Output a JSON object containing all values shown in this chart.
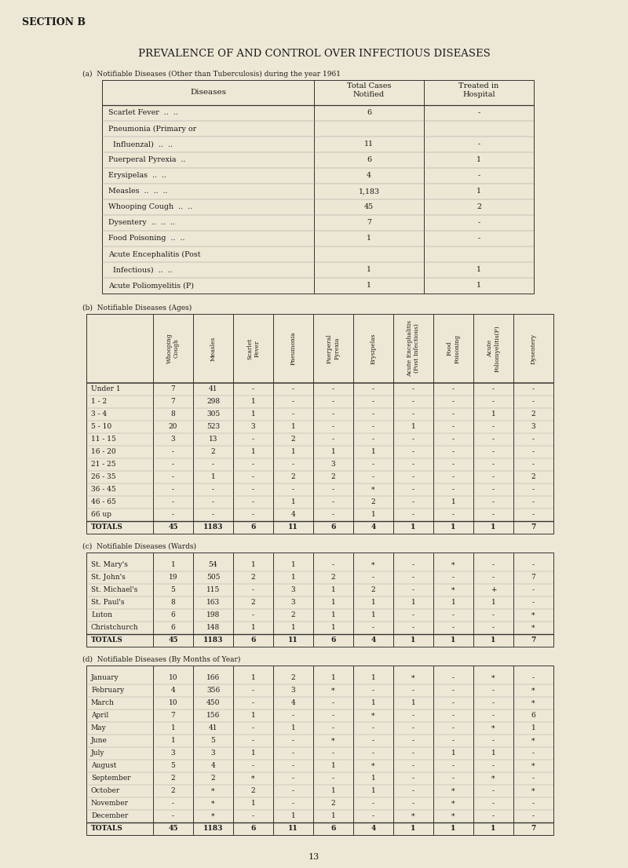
{
  "bg_color": "#ede8d5",
  "section_label": "SECTION B",
  "main_title": "PREVALENCE OF AND CONTROL OVER INFECTIOUS DISEASES",
  "table_a_title": "(a)  Notifiable Diseases (Other than Tuberculosis) during the year 1961",
  "table_b_title": "(b)  Notifiable Diseases (Ages)",
  "table_c_title": "(c)  Notifiable Diseases (Wards)",
  "table_d_title": "(d)  Notifiable Diseases (By Months of Year)",
  "table_b_col_headers": [
    "Whooping\nCough",
    "Measles",
    "Scarlet\nFever",
    "Pneumonia",
    "Puerperal\nPyrexia",
    "Erysipelas",
    "Acute Encephalitis\n(Post Infectious)",
    "Food\nPoisoning",
    "Acute\nPoliomyelitis(P)",
    "Dysentery"
  ],
  "table_a_rows": [
    [
      "Scarlet Fever  ..  ..",
      "6",
      "-"
    ],
    [
      "Pneumonia (Primary or",
      "",
      ""
    ],
    [
      "  Influenzal)  ..  ..",
      "11",
      "-"
    ],
    [
      "Puerperal Pyrexia  ..",
      "6",
      "1"
    ],
    [
      "Erysipelas  ..  ..",
      "4",
      "-"
    ],
    [
      "Measles  ..  ..  ..",
      "1,183",
      "1"
    ],
    [
      "Whooping Cough  ..  ..",
      "45",
      "2"
    ],
    [
      "Dysentery  ..  ..  ..",
      "7",
      "-"
    ],
    [
      "Food Poisoning  ..  ..",
      "1",
      "-"
    ],
    [
      "Acute Encephalitis (Post",
      "",
      ""
    ],
    [
      "  Infectious)  ..  ..",
      "1",
      "1"
    ],
    [
      "Acute Poliomyelitis (P)",
      "1",
      "1"
    ]
  ],
  "table_b_rows": [
    [
      "Under 1",
      "7",
      "41",
      "-",
      "-",
      "-",
      "-",
      "-",
      "-",
      "-",
      "-"
    ],
    [
      "1 - 2",
      "7",
      "298",
      "1",
      "-",
      "-",
      "-",
      "-",
      "-",
      "-",
      "-"
    ],
    [
      "3 - 4",
      "8",
      "305",
      "1",
      "-",
      "-",
      "-",
      "-",
      "-",
      "1",
      "2"
    ],
    [
      "5 - 10",
      "20",
      "523",
      "3",
      "1",
      "-",
      "-",
      "1",
      "-",
      "-",
      "3"
    ],
    [
      "11 - 15",
      "3",
      "13",
      "-",
      "2",
      "-",
      "-",
      "-",
      "-",
      "-",
      "-"
    ],
    [
      "16 - 20",
      "-",
      "2",
      "1",
      "1",
      "1",
      "1",
      "-",
      "-",
      "-",
      "-"
    ],
    [
      "21 - 25",
      "-",
      "-",
      "-",
      "-",
      "3",
      "-",
      "-",
      "-",
      "-",
      "-"
    ],
    [
      "26 - 35",
      "-",
      "1",
      "-",
      "2",
      "2",
      "-",
      "-",
      "-",
      "-",
      "2"
    ],
    [
      "36 - 45",
      "-",
      "-",
      "-",
      "-",
      "-",
      "*",
      "-",
      "-",
      "-",
      "-"
    ],
    [
      "46 - 65",
      "-",
      "-",
      "-",
      "1",
      "-",
      "2",
      "-",
      "1",
      "-",
      "-"
    ],
    [
      "66 up",
      "-",
      "-",
      "-",
      "4",
      "-",
      "1",
      "-",
      "-",
      "-",
      "-"
    ],
    [
      "TOTALS",
      "45",
      "1183",
      "6",
      "11",
      "6",
      "4",
      "1",
      "1",
      "1",
      "7"
    ]
  ],
  "table_c_rows": [
    [
      "St. Mary's",
      "1",
      "54",
      "1",
      "1",
      "-",
      "*",
      "-",
      "*",
      "-",
      "-"
    ],
    [
      "St. John's",
      "19",
      "505",
      "2",
      "1",
      "2",
      "-",
      "-",
      "-",
      "-",
      "7"
    ],
    [
      "St. Michael's",
      "5",
      "115",
      "-",
      "3",
      "1",
      "2",
      "-",
      "*",
      "+",
      "-"
    ],
    [
      "St. Paul's",
      "8",
      "163",
      "2",
      "3",
      "1",
      "1",
      "1",
      "1",
      "1",
      "-"
    ],
    [
      "Luton",
      "6",
      "198",
      "-",
      "2",
      "1",
      "1",
      "-",
      "-",
      "-",
      "*"
    ],
    [
      "Christchurch",
      "6",
      "148",
      "1",
      "1",
      "1",
      "-",
      "-",
      "-",
      "-",
      "*"
    ],
    [
      "TOTALS",
      "45",
      "1183",
      "6",
      "11",
      "6",
      "4",
      "1",
      "1",
      "1",
      "7"
    ]
  ],
  "table_d_rows": [
    [
      "January",
      "10",
      "166",
      "1",
      "2",
      "1",
      "1",
      "*",
      "-",
      "*",
      "-"
    ],
    [
      "February",
      "4",
      "356",
      "-",
      "3",
      "*",
      "-",
      "-",
      "-",
      "-",
      "*"
    ],
    [
      "March",
      "10",
      "450",
      "-",
      "4",
      "-",
      "1",
      "1",
      "-",
      "-",
      "*"
    ],
    [
      "April",
      "7",
      "156",
      "1",
      "-",
      "-",
      "*",
      "-",
      "-",
      "-",
      "6"
    ],
    [
      "May",
      "1",
      "41",
      "-",
      "1",
      "-",
      "-",
      "-",
      "-",
      "*",
      "1"
    ],
    [
      "June",
      "1",
      "5",
      "-",
      "-",
      "*",
      "-",
      "-",
      "-",
      "-",
      "*"
    ],
    [
      "July",
      "3",
      "3",
      "1",
      "-",
      "-",
      "-",
      "-",
      "1",
      "1",
      "-"
    ],
    [
      "August",
      "5",
      "4",
      "-",
      "-",
      "1",
      "*",
      "-",
      "-",
      "-",
      "*"
    ],
    [
      "September",
      "2",
      "2",
      "*",
      "-",
      "-",
      "1",
      "-",
      "-",
      "*",
      "-"
    ],
    [
      "October",
      "2",
      "*",
      "2",
      "-",
      "1",
      "1",
      "-",
      "*",
      "-",
      "*"
    ],
    [
      "November",
      "-",
      "*",
      "1",
      "-",
      "2",
      "-",
      "-",
      "*",
      "-",
      "-"
    ],
    [
      "December",
      "-",
      "*",
      "-",
      "1",
      "1",
      "-",
      "*",
      "*",
      "-",
      "-"
    ],
    [
      "TOTALS",
      "45",
      "1183",
      "6",
      "11",
      "6",
      "4",
      "1",
      "1",
      "1",
      "7"
    ]
  ],
  "page_number": "13"
}
